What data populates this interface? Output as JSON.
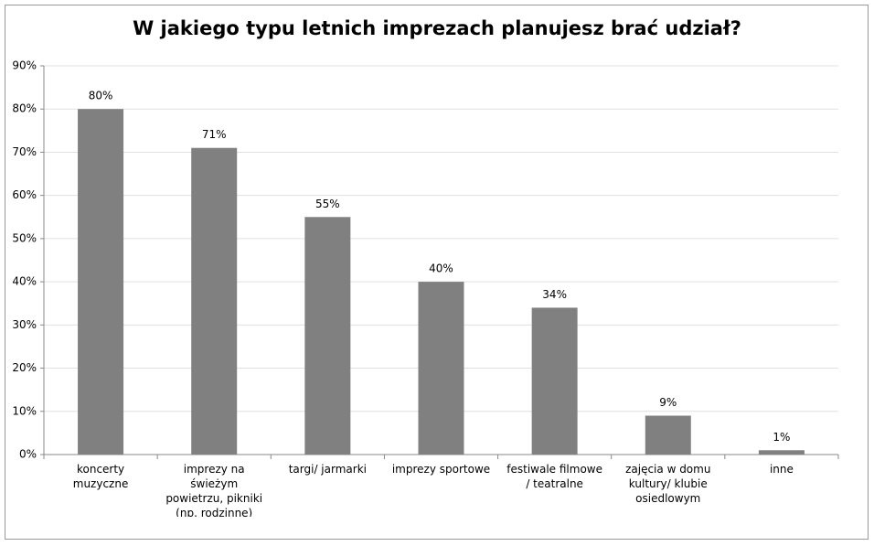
{
  "chart_data": {
    "type": "bar",
    "title": "W jakiego typu letnich imprezach planujesz brać udział?",
    "categories": [
      "koncerty muzyczne",
      "imprezy na świeżym powietrzu, pikniki (np. rodzinne)",
      "targi/ jarmarki",
      "imprezy sportowe",
      "festiwale filmowe / teatralne",
      "zajęcia w domu kultury/ klubie osiedlowym",
      "inne"
    ],
    "values": [
      80,
      71,
      55,
      40,
      34,
      9,
      1
    ],
    "value_labels": [
      "80%",
      "71%",
      "55%",
      "40%",
      "34%",
      "9%",
      "1%"
    ],
    "color": "#808080",
    "ylim": [
      0,
      90
    ],
    "yticks": [
      {
        "value": 0,
        "label": "0%"
      },
      {
        "value": 10,
        "label": "10%"
      },
      {
        "value": 20,
        "label": "20%"
      },
      {
        "value": 30,
        "label": "30%"
      },
      {
        "value": 40,
        "label": "40%"
      },
      {
        "value": 50,
        "label": "50%"
      },
      {
        "value": 60,
        "label": "60%"
      },
      {
        "value": 70,
        "label": "70%"
      },
      {
        "value": 80,
        "label": "80%"
      },
      {
        "value": 90,
        "label": "90%"
      }
    ],
    "grid": true
  }
}
